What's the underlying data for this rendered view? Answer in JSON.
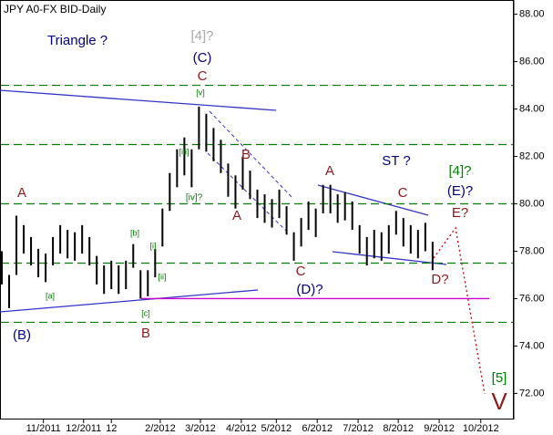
{
  "chart_data": {
    "type": "ohlc",
    "title": "JPY A0-FX BID-Daily",
    "color": "#000000",
    "x": [
      0,
      1,
      2,
      3,
      4,
      5,
      6,
      7,
      8,
      9,
      10,
      11,
      12,
      13,
      14,
      15,
      16,
      17,
      18,
      19,
      20,
      21,
      22,
      23,
      24,
      25,
      26,
      27,
      28,
      29,
      30,
      31,
      32,
      33,
      34,
      35,
      36,
      37,
      38,
      39,
      40,
      41,
      42,
      43,
      44,
      45,
      46,
      47,
      48,
      49,
      50,
      51,
      52,
      53,
      54,
      55,
      56,
      57,
      58,
      59
    ],
    "high": [
      78.0,
      77.0,
      79.5,
      79.1,
      78.6,
      78.1,
      77.9,
      78.6,
      79.1,
      78.9,
      78.8,
      79.1,
      78.6,
      77.8,
      77.4,
      77.6,
      77.4,
      77.6,
      78.3,
      77.2,
      77.2,
      78.1,
      79.8,
      81.3,
      82.3,
      82.8,
      82.3,
      84.1,
      83.8,
      83.2,
      82.7,
      81.7,
      81.2,
      82.0,
      81.4,
      80.6,
      80.4,
      80.2,
      80.6,
      79.9,
      78.8,
      79.4,
      80.1,
      79.8,
      80.8,
      80.8,
      80.4,
      80.5,
      80.1,
      79.1,
      78.6,
      78.9,
      78.8,
      79.1,
      79.7,
      79.4,
      79.1,
      78.9,
      79.2,
      78.4
    ],
    "low": [
      76.6,
      75.6,
      77.0,
      77.9,
      77.4,
      76.9,
      76.7,
      77.4,
      77.9,
      77.7,
      77.6,
      77.9,
      77.4,
      76.6,
      76.2,
      76.4,
      76.2,
      76.4,
      77.3,
      76.0,
      76.1,
      76.9,
      78.2,
      79.7,
      80.7,
      81.2,
      80.7,
      82.3,
      82.2,
      81.8,
      81.3,
      80.3,
      79.8,
      80.6,
      80.2,
      79.4,
      79.2,
      79.0,
      79.4,
      78.7,
      77.6,
      78.2,
      78.9,
      78.6,
      79.6,
      79.6,
      79.2,
      79.3,
      78.9,
      77.9,
      77.4,
      77.7,
      77.6,
      77.9,
      78.7,
      78.2,
      77.9,
      77.7,
      78.0,
      77.2
    ],
    "xlim": [
      0,
      70
    ],
    "xticks": [
      {
        "value": 5.7,
        "label": "11/2011"
      },
      {
        "value": 11.2,
        "label": "12/2011"
      },
      {
        "value": 15,
        "label": "12"
      },
      {
        "value": 21.7,
        "label": "2/2012"
      },
      {
        "value": 27.2,
        "label": "3/2012"
      },
      {
        "value": 32.8,
        "label": "4/2012"
      },
      {
        "value": 37.6,
        "label": "5/2012"
      },
      {
        "value": 43.2,
        "label": "6/2012"
      },
      {
        "value": 48.8,
        "label": "7/2012"
      },
      {
        "value": 54.3,
        "label": "8/2012"
      },
      {
        "value": 59.9,
        "label": "9/2012"
      },
      {
        "value": 65.6,
        "label": "10/2012"
      }
    ],
    "ylim": [
      70.9,
      88.6
    ],
    "yticks": [
      {
        "value": 72,
        "label": "72.00"
      },
      {
        "value": 74,
        "label": "74.00"
      },
      {
        "value": 76,
        "label": "76.00"
      },
      {
        "value": 78,
        "label": "78.00"
      },
      {
        "value": 80,
        "label": "80.00"
      },
      {
        "value": 82,
        "label": "82.00"
      },
      {
        "value": 84,
        "label": "84.00"
      },
      {
        "value": 86,
        "label": "86.00"
      },
      {
        "value": 88,
        "label": "88.00"
      }
    ],
    "levels": [
      85,
      82.5,
      80,
      77.5,
      75
    ],
    "level_color": "#008000",
    "support": 76,
    "support_color": "#cc00cc",
    "annotations": [
      {
        "text": "Triangle ?",
        "color": "#000080"
      },
      {
        "text": "[4]?",
        "color": "#aaaaaa"
      },
      {
        "text": "(C)",
        "color": "#000080"
      },
      {
        "text": "C",
        "color": "#8b1a1a"
      },
      {
        "text": "[v]",
        "color": "#008000"
      },
      {
        "text": "B",
        "color": "#8b1a1a"
      },
      {
        "text": "[iii]",
        "color": "#008000"
      },
      {
        "text": "[iv]?",
        "color": "#008000"
      },
      {
        "text": "A",
        "color": "#8b1a1a"
      },
      {
        "text": "ST ?",
        "color": "#000080"
      },
      {
        "text": "[4]?",
        "color": "#008000"
      },
      {
        "text": "A",
        "color": "#8b1a1a"
      },
      {
        "text": "C",
        "color": "#8b1a1a"
      },
      {
        "text": "(E)?",
        "color": "#000080"
      },
      {
        "text": "E?",
        "color": "#8b1a1a"
      },
      {
        "text": "A",
        "color": "#8b1a1a"
      },
      {
        "text": "[b]",
        "color": "#008000"
      },
      {
        "text": "[i]",
        "color": "#008000"
      },
      {
        "text": "[ii]",
        "color": "#008000"
      },
      {
        "text": "[a]",
        "color": "#008000"
      },
      {
        "text": "[c]",
        "color": "#008000"
      },
      {
        "text": "(B)",
        "color": "#000080"
      },
      {
        "text": "B",
        "color": "#8b1a1a"
      },
      {
        "text": "C",
        "color": "#8b1a1a"
      },
      {
        "text": "(D)?",
        "color": "#000080"
      },
      {
        "text": "D?",
        "color": "#8b1a1a"
      },
      {
        "text": "[5]",
        "color": "#008000"
      },
      {
        "text": "V",
        "color": "#8b1a1a"
      }
    ]
  }
}
